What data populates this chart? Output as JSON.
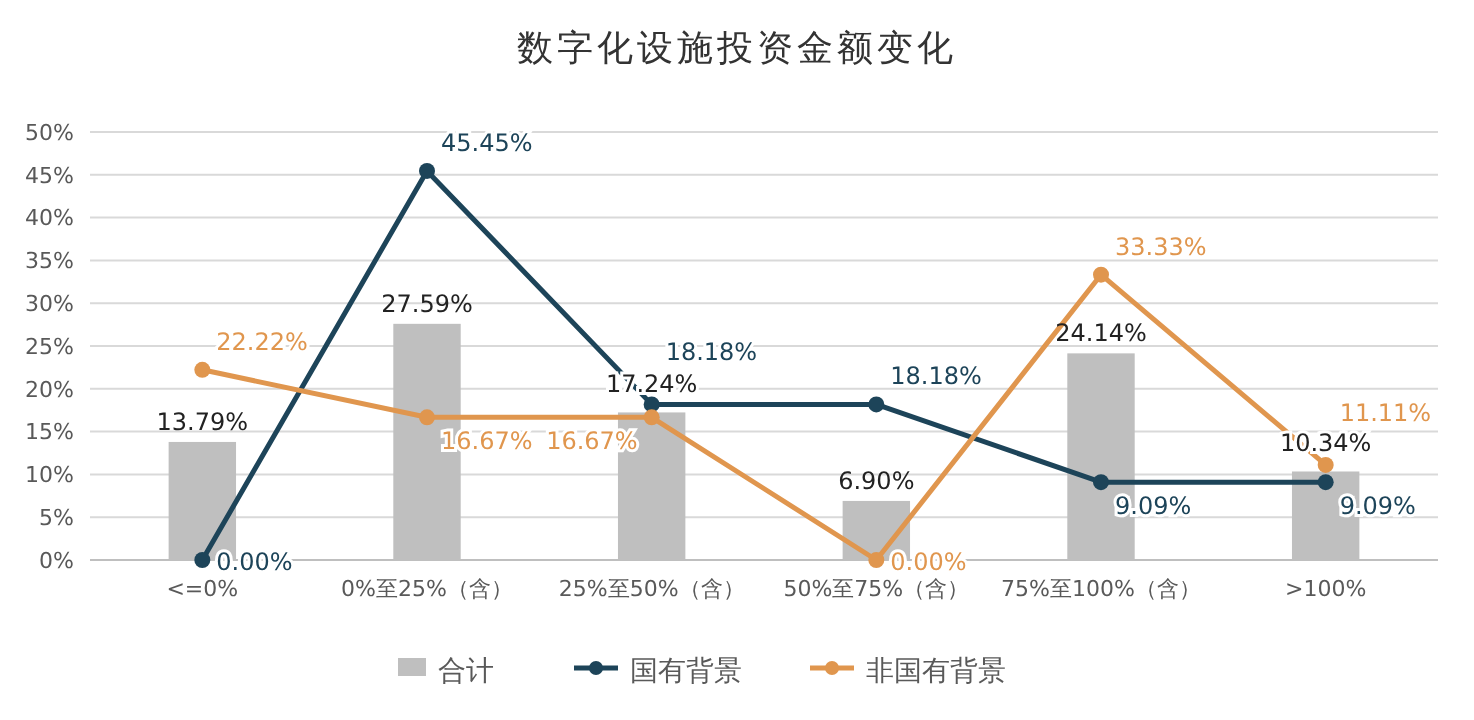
{
  "chart_data": {
    "type": "bar",
    "title": "数字化设施投资金额变化",
    "categories": [
      "<=0%",
      "0%至25%（含）",
      "25%至50%（含）",
      "50%至75%（含）",
      "75%至100%（含）",
      ">100%"
    ],
    "series": [
      {
        "name": "合计",
        "color": "#bfbfbf",
        "values": [
          13.79,
          27.59,
          17.24,
          6.9,
          24.14,
          10.34
        ],
        "value_labels": [
          "13.79%",
          "27.59%",
          "17.24%",
          "6.90%",
          "24.14%",
          "10.34%"
        ]
      },
      {
        "name": "国有背景",
        "type": "line",
        "color": "#1d4459",
        "values": [
          0,
          45.45,
          18.18,
          18.18,
          9.09,
          9.09
        ],
        "value_labels": [
          "0.00%",
          "45.45%",
          "18.18%",
          "18.18%",
          "9.09%",
          "9.09%"
        ]
      },
      {
        "name": "非国有背景",
        "type": "line",
        "color": "#e0964e",
        "values": [
          22.22,
          16.67,
          16.67,
          0,
          33.33,
          11.11
        ],
        "value_labels": [
          "22.22%",
          "16.67%",
          "16.67%",
          "0.00%",
          "33.33%",
          "11.11%"
        ]
      }
    ],
    "ylim": [
      0,
      50
    ],
    "yticks": [
      {
        "value": 0,
        "label": "0%"
      },
      {
        "value": 5,
        "label": "5%"
      },
      {
        "value": 10,
        "label": "10%"
      },
      {
        "value": 15,
        "label": "15%"
      },
      {
        "value": 20,
        "label": "20%"
      },
      {
        "value": 25,
        "label": "25%"
      },
      {
        "value": 30,
        "label": "30%"
      },
      {
        "value": 35,
        "label": "35%"
      },
      {
        "value": 40,
        "label": "40%"
      },
      {
        "value": 45,
        "label": "45%"
      },
      {
        "value": 50,
        "label": "50%"
      }
    ],
    "grid": "y",
    "legend": "bottom",
    "marker": "circle"
  }
}
